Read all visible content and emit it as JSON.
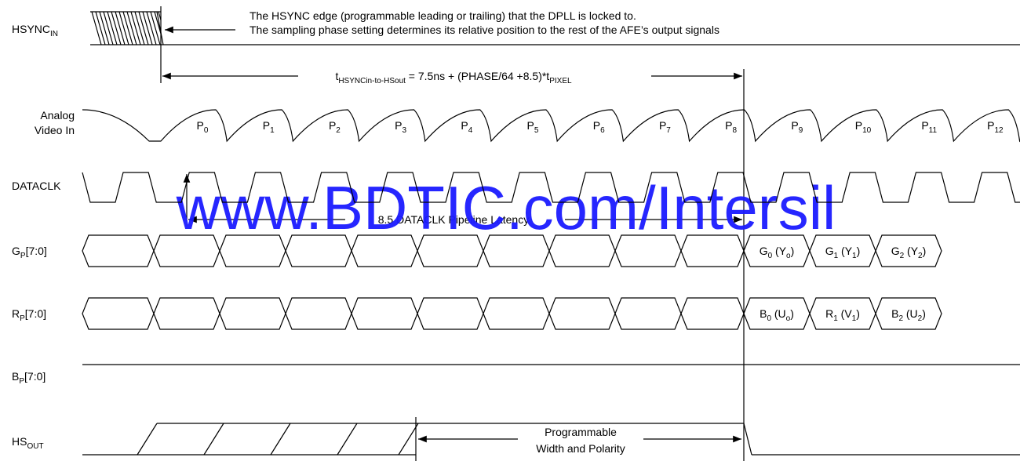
{
  "labels": {
    "hsync": [
      "HSYNC",
      "IN"
    ],
    "analog": [
      "Analog",
      "Video In"
    ],
    "dataclk": "DATACLK",
    "gp": [
      "G",
      "P",
      "[7:0]"
    ],
    "rp": [
      "R",
      "P",
      "[7:0]"
    ],
    "bp": [
      "B",
      "P",
      "[7:0]"
    ],
    "hsout": [
      "HS",
      "OUT"
    ]
  },
  "notes": [
    "The HSYNC edge (programmable leading or trailing) that the DPLL is locked to.",
    "The sampling phase setting determines its relative position to the rest of the AFE’s output signals"
  ],
  "timing": [
    "t",
    "HSYNCin-to-HSout",
    " = 7.5ns + (PHASE/64 +8.5)*t",
    "PIXEL"
  ],
  "pixels": [
    [
      "P",
      "0"
    ],
    [
      "P",
      "1"
    ],
    [
      "P",
      "2"
    ],
    [
      "P",
      "3"
    ],
    [
      "P",
      "4"
    ],
    [
      "P",
      "5"
    ],
    [
      "P",
      "6"
    ],
    [
      "P",
      "7"
    ],
    [
      "P",
      "8"
    ],
    [
      "P",
      "9"
    ],
    [
      "P",
      "10"
    ],
    [
      "P",
      "11"
    ],
    [
      "P",
      "12"
    ]
  ],
  "latency": "8.5 DATACLK Pipeline Latency",
  "watermark": "www.BDTIC.com/Intersil",
  "g_bus": [
    [
      "G",
      "0",
      " (Y",
      "o",
      ")"
    ],
    [
      "G",
      "1",
      " (Y",
      "1",
      ")"
    ],
    [
      "G",
      "2",
      " (Y",
      "2",
      ")"
    ]
  ],
  "r_bus": [
    [
      "B",
      "0",
      " (U",
      "o",
      ")"
    ],
    [
      "R",
      "1",
      " (V",
      "1",
      ")"
    ],
    [
      "B",
      "2",
      " (U",
      "2",
      ")"
    ]
  ],
  "hs_note": [
    "Programmable",
    "Width and Polarity"
  ]
}
